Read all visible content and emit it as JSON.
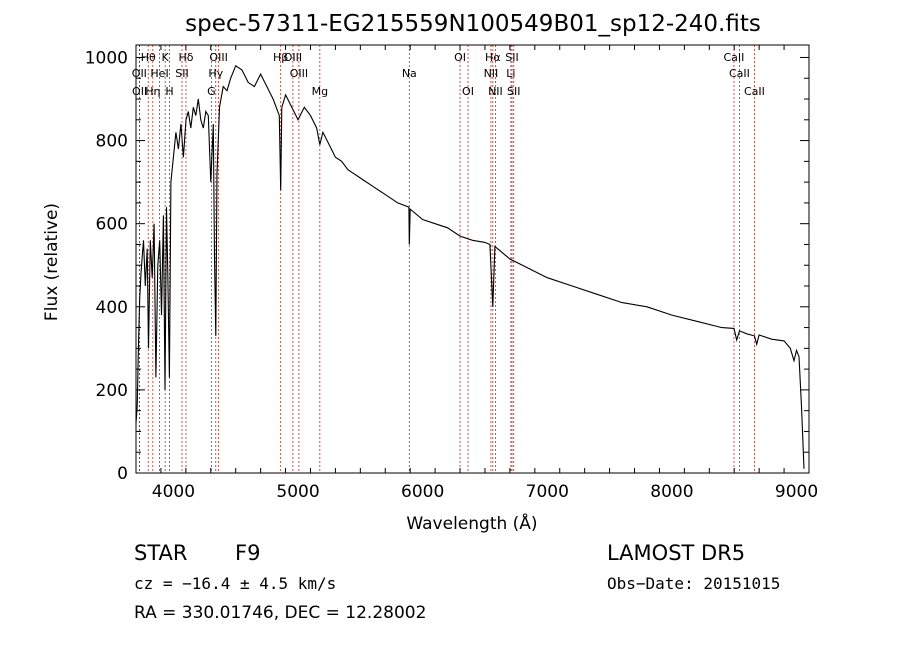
{
  "chart_data": {
    "type": "line",
    "title": "spec-57311-EG215559N100549B01_sp12-240.fits",
    "xlabel": "Wavelength (Å)",
    "ylabel": "Flux (relative)",
    "xlim": [
      3700,
      9100
    ],
    "ylim": [
      0,
      1030
    ],
    "grid": false,
    "x_ticks": [
      4000,
      5000,
      6000,
      7000,
      8000,
      9000
    ],
    "y_ticks": [
      0,
      200,
      400,
      600,
      800,
      1000
    ],
    "series": [
      {
        "x": [
          3700,
          3710,
          3720,
          3730,
          3740,
          3750,
          3760,
          3775,
          3790,
          3800,
          3815,
          3830,
          3845,
          3860,
          3875,
          3890,
          3905,
          3920,
          3933,
          3945,
          3955,
          3968,
          3980,
          4000,
          4020,
          4040,
          4060,
          4080,
          4101,
          4120,
          4140,
          4160,
          4180,
          4200,
          4220,
          4240,
          4260,
          4280,
          4300,
          4320,
          4330,
          4340,
          4350,
          4370,
          4400,
          4430,
          4460,
          4500,
          4550,
          4600,
          4650,
          4700,
          4750,
          4800,
          4850,
          4861,
          4870,
          4900,
          4950,
          5000,
          5050,
          5100,
          5150,
          5175,
          5200,
          5250,
          5300,
          5350,
          5400,
          5450,
          5500,
          5600,
          5700,
          5800,
          5890,
          5893,
          5900,
          6000,
          6100,
          6200,
          6300,
          6400,
          6500,
          6540,
          6563,
          6580,
          6600,
          6700,
          6800,
          6900,
          7000,
          7200,
          7400,
          7600,
          7800,
          8000,
          8200,
          8400,
          8498,
          8520,
          8542,
          8560,
          8600,
          8662,
          8680,
          8700,
          8800,
          8900,
          8950,
          8980,
          9000,
          9020,
          9040,
          9060
        ],
        "y": [
          120,
          160,
          310,
          420,
          480,
          520,
          560,
          450,
          540,
          300,
          560,
          470,
          600,
          230,
          500,
          560,
          380,
          620,
          200,
          640,
          480,
          230,
          700,
          760,
          820,
          780,
          840,
          760,
          850,
          870,
          830,
          880,
          860,
          900,
          850,
          830,
          870,
          860,
          700,
          840,
          520,
          330,
          720,
          880,
          930,
          920,
          950,
          980,
          970,
          940,
          930,
          960,
          930,
          900,
          860,
          680,
          880,
          910,
          880,
          850,
          880,
          860,
          830,
          790,
          820,
          790,
          760,
          750,
          730,
          720,
          710,
          690,
          670,
          650,
          640,
          550,
          635,
          610,
          600,
          590,
          570,
          560,
          555,
          550,
          400,
          545,
          540,
          515,
          500,
          485,
          470,
          450,
          430,
          410,
          400,
          380,
          365,
          350,
          348,
          320,
          342,
          340,
          335,
          330,
          310,
          332,
          322,
          318,
          300,
          270,
          295,
          280,
          160,
          10
        ]
      }
    ],
    "lines": [
      {
        "label": "Hβ",
        "wl": 4861,
        "row": 1
      },
      {
        "label": "OIII",
        "wl": 4959,
        "row": 1
      },
      {
        "label": "OIII",
        "wl": 5007,
        "row": 2
      },
      {
        "label": "Mg",
        "wl": 5175,
        "row": 3
      },
      {
        "label": "Hθ",
        "wl": 3798,
        "row": 1
      },
      {
        "label": "OII",
        "wl": 3727,
        "row": 2
      },
      {
        "label": "OII",
        "wl": 3729,
        "row": 3
      },
      {
        "label": "Hη",
        "wl": 3835,
        "row": 3
      },
      {
        "label": "HeI",
        "wl": 3889,
        "row": 2
      },
      {
        "label": "K",
        "wl": 3934,
        "row": 1
      },
      {
        "label": "H",
        "wl": 3969,
        "row": 3
      },
      {
        "label": "SII",
        "wl": 4069,
        "row": 2
      },
      {
        "label": "Hδ",
        "wl": 4101,
        "row": 1
      },
      {
        "label": "OIII",
        "wl": 4363,
        "row": 1
      },
      {
        "label": "Hγ",
        "wl": 4340,
        "row": 2
      },
      {
        "label": "G",
        "wl": 4305,
        "row": 3
      },
      {
        "label": "Na",
        "wl": 5893,
        "row": 2
      },
      {
        "label": "OI",
        "wl": 6300,
        "row": 1
      },
      {
        "label": "OI",
        "wl": 6364,
        "row": 3
      },
      {
        "label": "Hα",
        "wl": 6563,
        "row": 1
      },
      {
        "label": "NII",
        "wl": 6548,
        "row": 2
      },
      {
        "label": "NII",
        "wl": 6584,
        "row": 3
      },
      {
        "label": "SII",
        "wl": 6717,
        "row": 1
      },
      {
        "label": "Li",
        "wl": 6708,
        "row": 2
      },
      {
        "label": "SII",
        "wl": 6731,
        "row": 3
      },
      {
        "label": "CaII",
        "wl": 8498,
        "row": 1
      },
      {
        "label": "CaII",
        "wl": 8542,
        "row": 2
      },
      {
        "label": "CaII",
        "wl": 8662,
        "row": 3
      }
    ]
  },
  "info": {
    "obj_class": "STAR",
    "subclass": "F9",
    "survey": "LAMOST  DR5",
    "redshift": "cz = −16.4 ± 4.5 km/s",
    "obs_date": "Obs−Date: 20151015",
    "coords": "RA = 330.01746, DEC =  12.28002"
  }
}
